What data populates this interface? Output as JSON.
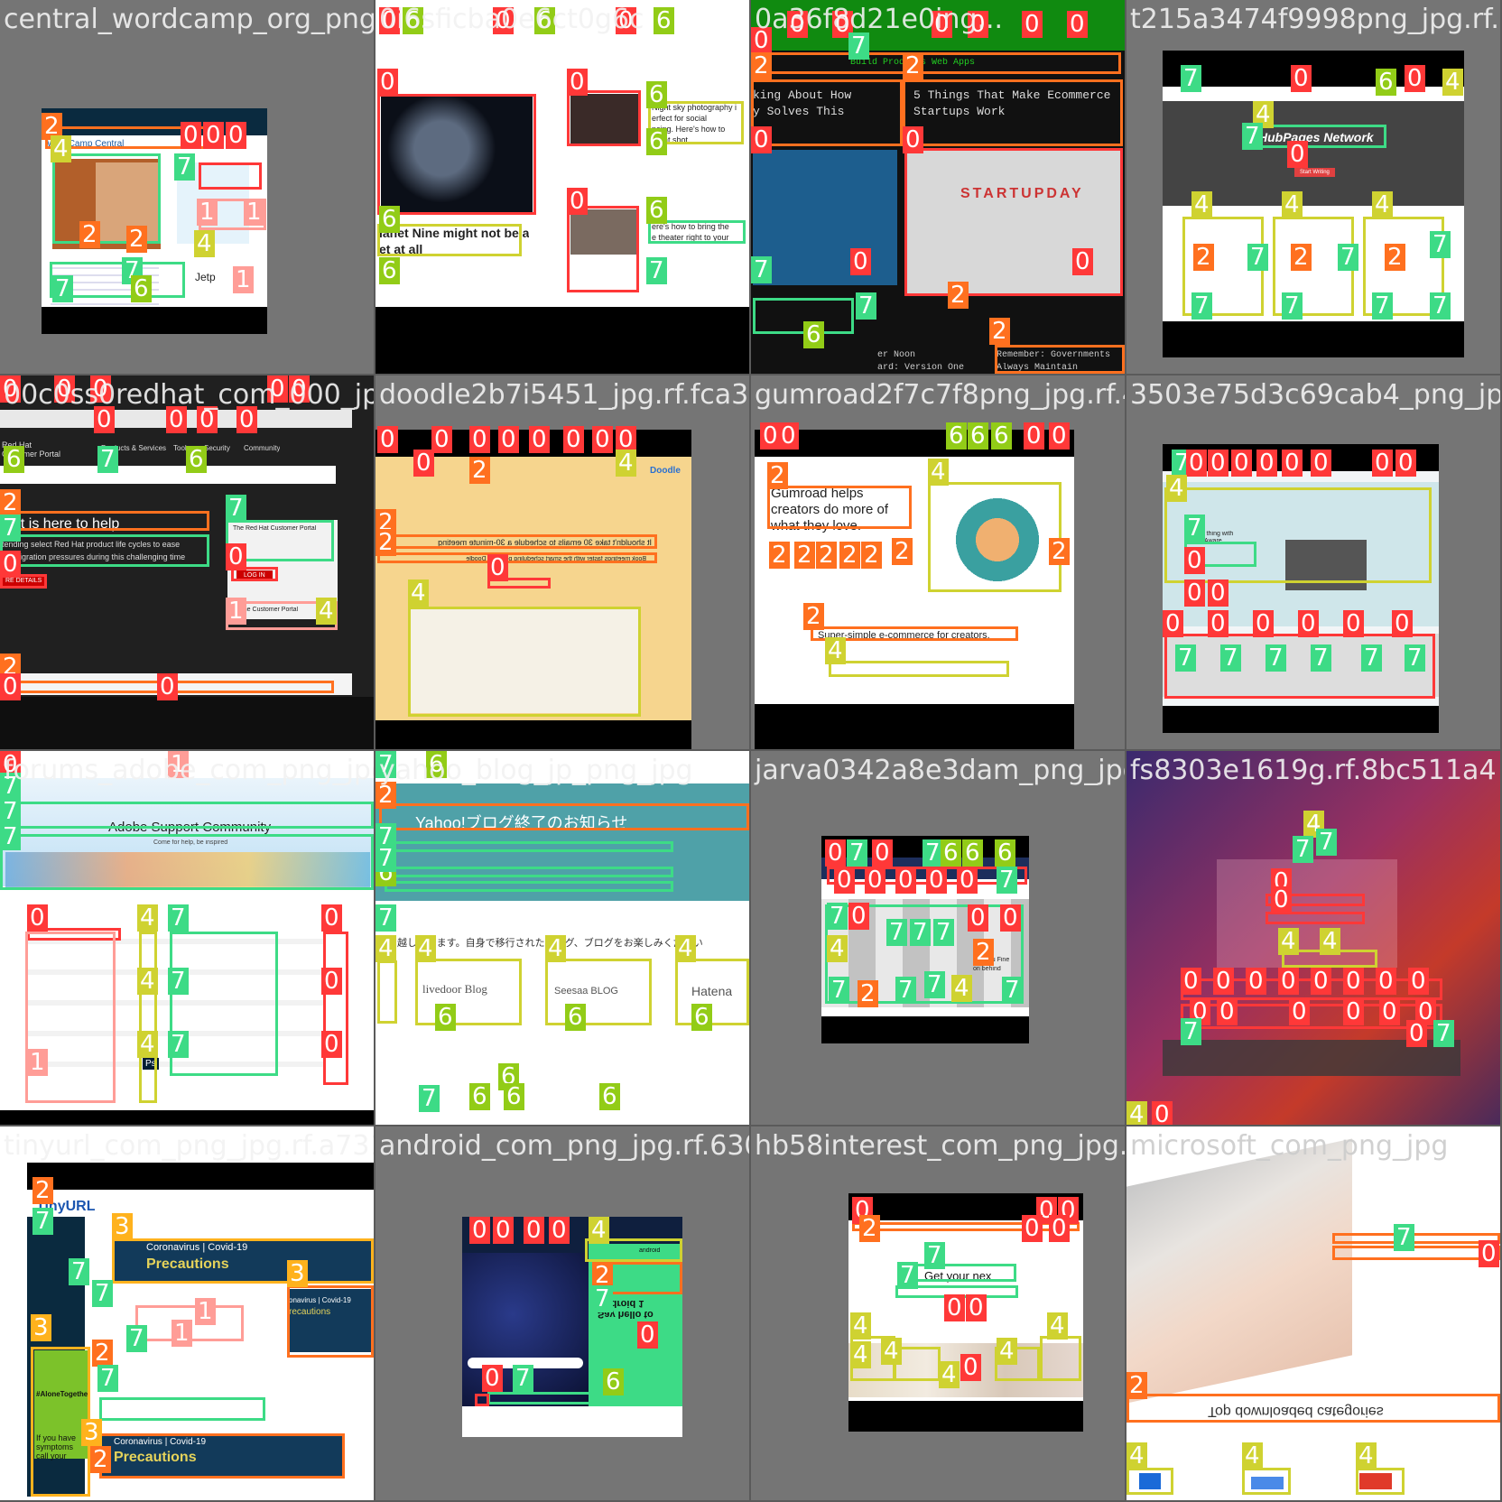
{
  "tiles": [
    {
      "title": "central_wordcamp_org_png",
      "texts": [
        "WordCamp Central",
        "Jetp"
      ]
    },
    {
      "title": "0i6sficba0e6ct0g6c",
      "texts": [
        "lanet Nine might not be a",
        "et at all",
        "Night sky photography i",
        "erfect for social",
        "ncing. Here's how to",
        "great shot",
        "ere's how to bring the",
        "e theater right to your"
      ]
    },
    {
      "title": "0a36f8d21e0ing...",
      "texts": [
        "Build Products Web Apps",
        "king About How",
        "y Solves This",
        "5 Things That Make Ecommerce",
        "Startups Work",
        "STARTUPDAY",
        "er Noon",
        "ard: Version One",
        "Remember: Governments",
        "Always Maintain"
      ]
    },
    {
      "title": "t215a3474f9998png_jpg.rf.8",
      "texts": [
        "HubPages Network",
        "Start Writing"
      ]
    },
    {
      "title": "00c0ss0redhat_com_000_jpg",
      "texts": [
        "Red Hat Customer Portal",
        "Products & Services",
        "Tools",
        "Security",
        "Community",
        "at is here to help",
        "tending select Red Hat product life cycles to ease",
        "nd migration pressures during this challenging time",
        "RE DETAILS",
        "The Red Hat Customer Portal",
        "LOG IN",
        "o the Customer Portal"
      ]
    },
    {
      "title": "doodle2b7i5451_jpg.rf.fca3",
      "texts": [
        "Doodle",
        "It shouldn't take 30 emails to schedule a 30-minute meeting",
        "Book meetings faster with the smart scheduling power of Doodle"
      ]
    },
    {
      "title": "gumroad2f7c7f8png_jpg.rf.41",
      "texts": [
        "Gumroad helps",
        "creators do more of",
        "what they love.",
        "Super-simple e-commerce for creators."
      ]
    },
    {
      "title": "3503e75d3c69cab4_png_jpg",
      "texts": [
        "ssa a thing with",
        "Nest Aware"
      ]
    },
    {
      "title": "forums_adobe_com_png_jpg",
      "texts": [
        "Adobe Support Community",
        "Come for help, be inspired",
        "Ps"
      ]
    },
    {
      "title": "yahoo_blog_jp_png_jpg",
      "texts": [
        "Yahoo!ブログ終了のお知らせ",
        "に引越しできます。自身で移行されたブログ、ブログをお楽しみください",
        "livedoor Blog",
        "Seesaa BLOG",
        "Hatena"
      ]
    },
    {
      "title": "jarva0342a8e3dam_png_jpg",
      "texts": [
        "Deja Vu Fine",
        "on behind"
      ]
    },
    {
      "title": "fs8303e1619g.rf.8bc511a4",
      "texts": []
    },
    {
      "title": "tinyurl_com_png_jpg.rf.a7318c9a23",
      "texts": [
        "TinyURL",
        "Coronavirus | Covid-19",
        "Precautions",
        "onavirus | Covid-19",
        "recautions",
        "#AloneTogether",
        "If you have symptoms call your",
        "Coronavirus | Covid-19",
        "Precautions"
      ]
    },
    {
      "title": "android_com_png_jpg.rf.630",
      "texts": [
        "Say hello to Android 1",
        "android"
      ]
    },
    {
      "title": "hb58interest_com_png_jpg.r",
      "texts": [
        "Get your nex"
      ]
    },
    {
      "title": "microsoft_com_png_jpg",
      "texts": [
        "Top downloaded categories"
      ]
    }
  ]
}
